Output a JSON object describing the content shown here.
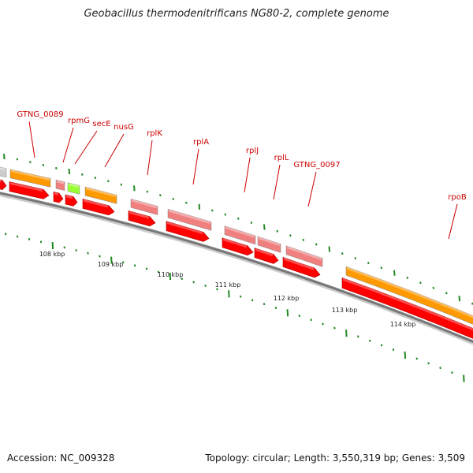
{
  "title": "Geobacillus thermodenitrificans NG80-2, complete genome",
  "accession_label": "Accession: NC_009328",
  "summary_label": "Topology: circular; Length: 3,550,319 bp; Genes: 3,509",
  "colors": {
    "gene_label": "#cc0000",
    "cds_red": "#ff0000",
    "gene_pink": "#f08080",
    "gene_orange": "#ff9900",
    "gene_green": "#99ff33",
    "gene_grey": "#cccccc",
    "backbone": "#777777",
    "tick": "#228822"
  },
  "scale_labels": [
    "108 kbp",
    "109 kbp",
    "110 kbp",
    "111 kbp",
    "112 kbp",
    "113 kbp",
    "114 kbp"
  ],
  "gene_labels": [
    {
      "name": "GTNG_0089",
      "kind": "orange"
    },
    {
      "name": "rpmG",
      "kind": "pink"
    },
    {
      "name": "secE",
      "kind": "green"
    },
    {
      "name": "nusG",
      "kind": "orange"
    },
    {
      "name": "rplK",
      "kind": "pink"
    },
    {
      "name": "rplA",
      "kind": "pink"
    },
    {
      "name": "rplJ",
      "kind": "pink"
    },
    {
      "name": "rplL",
      "kind": "pink"
    },
    {
      "name": "GTNG_0097",
      "kind": "pink"
    },
    {
      "name": "rpoB",
      "kind": "orange"
    }
  ]
}
